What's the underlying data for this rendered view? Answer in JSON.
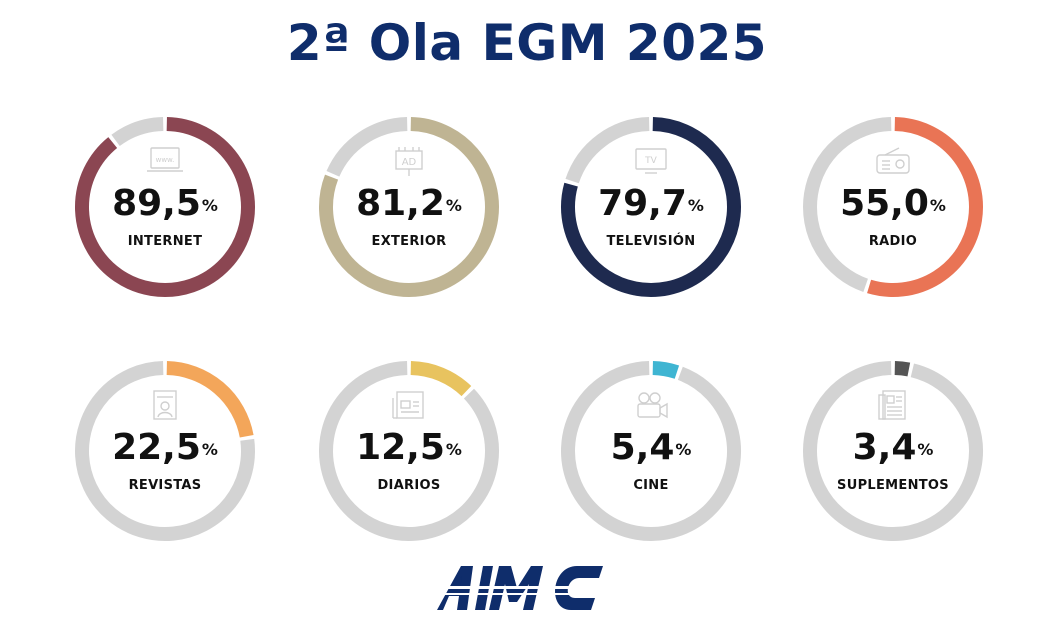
{
  "title": "2ª Ola EGM 2025",
  "chart_data": {
    "type": "donut",
    "title": "2ª Ola EGM 2025",
    "unit": "%",
    "items": [
      {
        "label": "INTERNET",
        "value": 89.5,
        "display": "89,5",
        "color": "#8b4652",
        "icon": "www-browser-icon"
      },
      {
        "label": "EXTERIOR",
        "value": 81.2,
        "display": "81,2",
        "color": "#bfb493",
        "icon": "billboard-ad-icon"
      },
      {
        "label": "TELEVISIÓN",
        "value": 79.7,
        "display": "79,7",
        "color": "#1e2a4f",
        "icon": "tv-icon"
      },
      {
        "label": "RADIO",
        "value": 55.0,
        "display": "55,0",
        "color": "#e97455",
        "icon": "radio-icon"
      },
      {
        "label": "REVISTAS",
        "value": 22.5,
        "display": "22,5",
        "color": "#f3a65a",
        "icon": "magazine-icon"
      },
      {
        "label": "DIARIOS",
        "value": 12.5,
        "display": "12,5",
        "color": "#e8c35f",
        "icon": "newspaper-icon"
      },
      {
        "label": "CINE",
        "value": 5.4,
        "display": "5,4",
        "color": "#3fb5d2",
        "icon": "movie-camera-icon"
      },
      {
        "label": "SUPLEMENTOS",
        "value": 3.4,
        "display": "3,4",
        "color": "#555555",
        "icon": "supplement-icon"
      }
    ],
    "track_color": "#d3d3d3"
  },
  "percent_symbol": "%",
  "logo": {
    "text": "AIMC",
    "color": "#0f2d6b"
  }
}
